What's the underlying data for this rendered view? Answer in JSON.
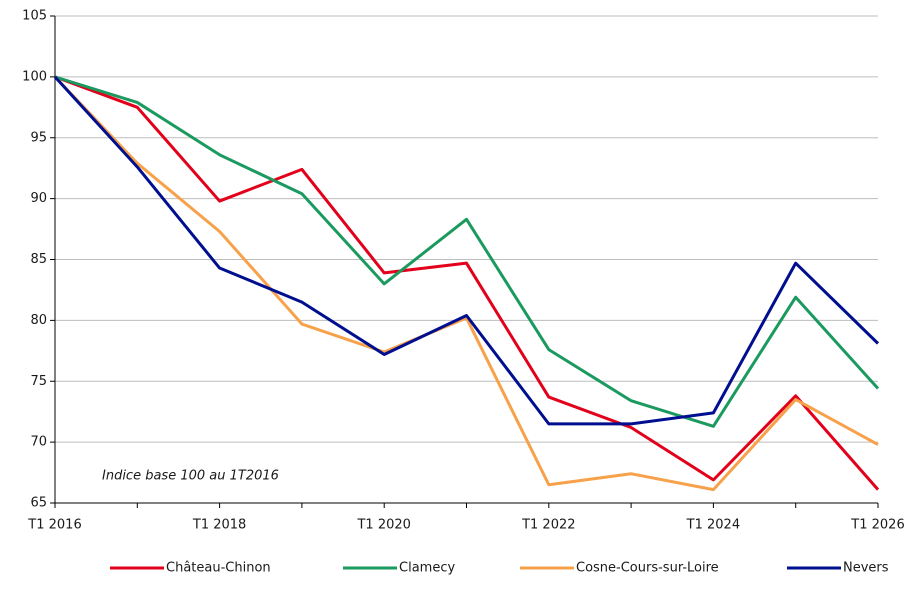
{
  "chart_data": {
    "type": "line",
    "annotation": "Indice base 100 au 1T2016",
    "categories": [
      "T1 2016",
      null,
      "T1 2018",
      null,
      "T1 2020",
      null,
      "T1 2022",
      null,
      "T1 2024",
      null,
      "T1 2026"
    ],
    "series": [
      {
        "name": "Château-Chinon",
        "color": "#e2001a",
        "values": [
          100,
          97.5,
          89.8,
          92.4,
          83.9,
          84.7,
          73.7,
          71.2,
          66.9,
          73.8,
          66.1
        ]
      },
      {
        "name": "Clamecy",
        "color": "#1b9a5f",
        "values": [
          100,
          97.9,
          93.6,
          90.4,
          83.0,
          88.3,
          77.6,
          73.4,
          71.3,
          81.9,
          74.4
        ]
      },
      {
        "name": "Cosne-Cours-sur-Loire",
        "color": "#f7a14a",
        "values": [
          100,
          92.9,
          87.3,
          79.7,
          77.4,
          80.2,
          66.5,
          67.4,
          66.1,
          73.5,
          69.8
        ]
      },
      {
        "name": "Nevers",
        "color": "#000f8f",
        "values": [
          100,
          92.6,
          84.3,
          81.5,
          77.2,
          80.4,
          71.5,
          71.5,
          72.4,
          84.7,
          78.1
        ]
      }
    ],
    "ylim": [
      65,
      105
    ],
    "yticks": [
      65,
      70,
      75,
      80,
      85,
      90,
      95,
      100,
      105
    ],
    "grid": true
  }
}
